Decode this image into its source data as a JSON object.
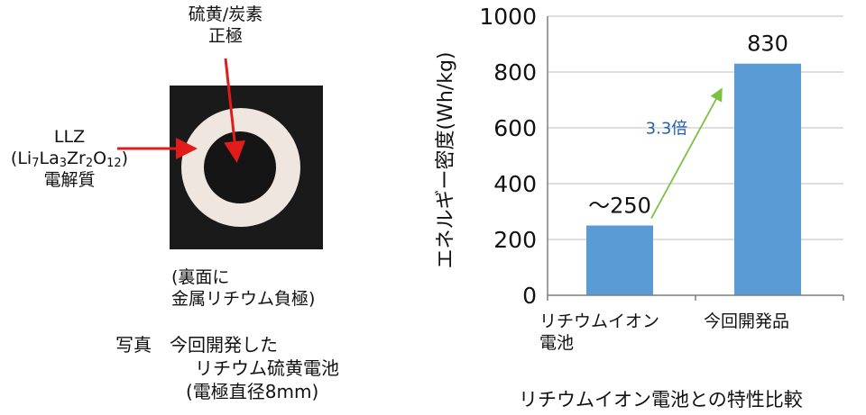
{
  "photo": {
    "cathode_label": "硫黄/炭素",
    "cathode_label_2": "正極",
    "electrolyte_label": "LLZ",
    "electrolyte_formula": {
      "open": "(",
      "li": "Li",
      "li_sub": "7",
      "la": "La",
      "la_sub": "3",
      "zr": "Zr",
      "zr_sub": "2",
      "o": "O",
      "o_sub": "12",
      "close": ")"
    },
    "electrolyte_label_2": "電解質",
    "back_label_1": "(裏面に",
    "back_label_2": "金属リチウム負極)",
    "caption_1": "写真　今回開発した",
    "caption_2": "リチウム硫黄電池",
    "caption_3": "(電極直径8mm)",
    "colors": {
      "background": "#1a1a1a",
      "ring": "#f0e6e0",
      "arrow": "#e21b1b"
    }
  },
  "chart_data": {
    "type": "bar",
    "categories": [
      "リチウムイオン\n電池",
      "今回開発品"
    ],
    "category_lines": [
      [
        "リチウムイオン",
        "電池"
      ],
      [
        "今回開発品"
      ]
    ],
    "values": [
      250,
      830
    ],
    "data_labels": [
      "～250",
      "830"
    ],
    "ylabel": "エネルギー密度(Wh/kg)",
    "ylim": [
      0,
      1000
    ],
    "yticks": [
      0,
      200,
      400,
      600,
      800,
      1000
    ],
    "grid": true,
    "annotation": "3.3倍",
    "caption": "リチウムイオン電池との特性比較",
    "colors": {
      "bar": "#5b9bd5",
      "arrow": "#7ac142",
      "annotation": "#1f5fb4",
      "grid": "#bfbfbf"
    }
  }
}
